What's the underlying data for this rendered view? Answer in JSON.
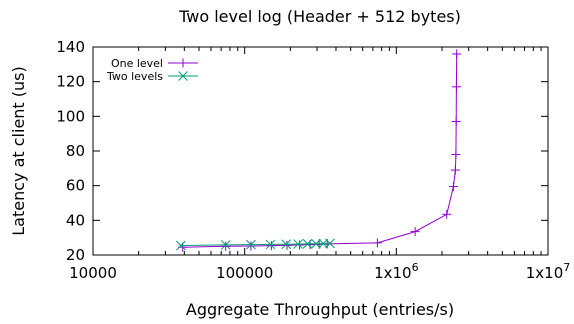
{
  "chart_data": {
    "type": "line",
    "title": "Two level log (Header + 512 bytes)",
    "xlabel": "Aggregate Throughput (entries/s)",
    "ylabel": "Latency at client (us)",
    "x_scale": "log",
    "xlim": [
      10000,
      10000000
    ],
    "ylim": [
      20,
      140
    ],
    "x_ticks": [
      {
        "value": 10000,
        "label": "10000"
      },
      {
        "value": 100000,
        "label": "100000"
      },
      {
        "value": 1000000,
        "label": "1x10",
        "sup": "6"
      },
      {
        "value": 10000000,
        "label": "1x10",
        "sup": "7"
      }
    ],
    "y_ticks": [
      {
        "value": 20,
        "label": "20"
      },
      {
        "value": 40,
        "label": "40"
      },
      {
        "value": 60,
        "label": "60"
      },
      {
        "value": 80,
        "label": "80"
      },
      {
        "value": 100,
        "label": "100"
      },
      {
        "value": 120,
        "label": "120"
      },
      {
        "value": 140,
        "label": "140"
      }
    ],
    "grid": false,
    "legend_position": "top-left",
    "series": [
      {
        "name": "One level",
        "color": "#9400d3",
        "marker": "plus",
        "x": [
          39000,
          75000,
          110000,
          150000,
          190000,
          230000,
          270000,
          310000,
          350000,
          750000,
          1330000,
          2150000,
          2380000,
          2450000,
          2470000,
          2480000,
          2490000,
          2500000
        ],
        "y": [
          24.5,
          25,
          25.2,
          25.4,
          25.6,
          25.8,
          26,
          26.2,
          26.4,
          27,
          33.5,
          43.5,
          59.5,
          69,
          78,
          97,
          117,
          136
        ]
      },
      {
        "name": "Two levels",
        "color": "#009e73",
        "marker": "cross",
        "x": [
          38000,
          75000,
          110000,
          148000,
          188000,
          225000,
          260000,
          295000,
          330000,
          365000
        ],
        "y": [
          25.5,
          25.8,
          26,
          26.1,
          26.2,
          26.3,
          26.4,
          26.5,
          26.6,
          26.7
        ]
      }
    ]
  }
}
